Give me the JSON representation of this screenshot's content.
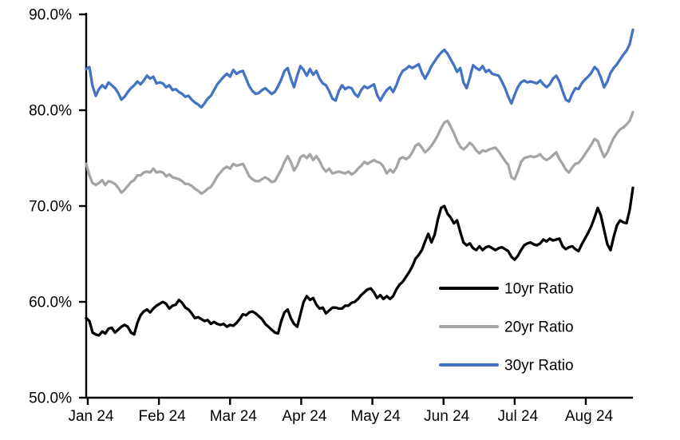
{
  "chart_data": {
    "type": "line",
    "title": "",
    "grid": false,
    "x_axis": {
      "tick_labels": [
        "Jan 24",
        "Feb 24",
        "Mar 24",
        "Apr 24",
        "May 24",
        "Jun 24",
        "Jul 24",
        "Aug 24"
      ],
      "label_format": "month-year"
    },
    "y_axis": {
      "min": 50,
      "max": 90,
      "tick_values": [
        90,
        80,
        70,
        60,
        50
      ],
      "tick_labels": [
        "90.0%",
        "80.0%",
        "70.0%",
        "60.0%",
        "50.0%"
      ]
    },
    "legend": {
      "position": "inside-lower-right",
      "entries": [
        "10yr Ratio",
        "20yr Ratio",
        "30yr Ratio"
      ]
    },
    "colors": {
      "series_10yr": "#000000",
      "series_20yr": "#A5A5A5",
      "series_30yr": "#4472C4",
      "axis": "#000000",
      "background": "#ffffff"
    },
    "series": [
      {
        "name": "10yr Ratio",
        "color": "#000000",
        "values": [
          58.3,
          58.0,
          56.8,
          56.6,
          56.5,
          56.9,
          56.7,
          57.2,
          57.3,
          56.8,
          57.1,
          57.4,
          57.6,
          57.4,
          56.8,
          56.6,
          57.8,
          58.6,
          59.0,
          59.2,
          58.9,
          59.3,
          59.6,
          59.8,
          60.0,
          59.8,
          59.3,
          59.6,
          59.7,
          60.2,
          59.9,
          59.4,
          59.2,
          58.8,
          58.3,
          58.4,
          58.2,
          58.0,
          58.1,
          57.7,
          57.9,
          57.7,
          57.6,
          57.7,
          57.4,
          57.6,
          57.5,
          57.8,
          58.2,
          58.7,
          58.6,
          58.9,
          59.0,
          58.8,
          58.5,
          58.2,
          57.7,
          57.4,
          57.1,
          56.8,
          56.7,
          58.0,
          58.9,
          59.2,
          58.3,
          57.7,
          57.4,
          58.7,
          60.0,
          60.6,
          60.2,
          60.4,
          59.7,
          59.3,
          59.4,
          58.8,
          59.1,
          59.4,
          59.4,
          59.3,
          59.3,
          59.6,
          59.6,
          59.9,
          60.0,
          60.3,
          60.7,
          61.0,
          61.3,
          61.4,
          61.0,
          60.4,
          60.7,
          60.3,
          60.6,
          60.3,
          60.6,
          61.3,
          61.8,
          62.1,
          62.6,
          63.1,
          63.7,
          64.5,
          64.9,
          65.4,
          66.3,
          67.1,
          66.2,
          67.0,
          68.6,
          69.8,
          70.0,
          69.2,
          68.8,
          68.2,
          68.5,
          67.3,
          66.2,
          65.9,
          66.1,
          65.6,
          65.4,
          65.8,
          65.4,
          65.7,
          65.8,
          65.6,
          65.4,
          65.6,
          65.7,
          65.5,
          65.3,
          64.7,
          64.4,
          64.8,
          65.4,
          65.9,
          66.1,
          66.2,
          66.0,
          65.9,
          66.1,
          66.5,
          66.3,
          66.6,
          66.4,
          66.5,
          66.6,
          65.8,
          65.5,
          65.7,
          65.8,
          65.5,
          65.3,
          66.0,
          66.6,
          67.2,
          67.9,
          68.8,
          69.8,
          69.0,
          67.5,
          66.0,
          65.4,
          66.8,
          68.0,
          68.5,
          68.3,
          68.2,
          69.6,
          71.9
        ]
      },
      {
        "name": "20yr Ratio",
        "color": "#A5A5A5",
        "values": [
          74.4,
          73.2,
          72.4,
          72.2,
          72.4,
          72.7,
          72.2,
          72.6,
          72.5,
          72.3,
          71.9,
          71.4,
          71.7,
          72.1,
          72.5,
          72.7,
          73.2,
          73.2,
          73.5,
          73.6,
          73.5,
          73.9,
          73.5,
          73.6,
          73.5,
          73.1,
          73.3,
          73.0,
          72.9,
          72.8,
          72.6,
          72.3,
          72.3,
          72.1,
          71.8,
          71.6,
          71.3,
          71.5,
          71.8,
          72.0,
          72.5,
          73.1,
          73.5,
          73.9,
          74.1,
          73.9,
          74.4,
          74.2,
          74.3,
          74.4,
          73.8,
          73.1,
          72.8,
          72.6,
          72.6,
          72.8,
          73.0,
          72.8,
          72.5,
          72.6,
          73.2,
          73.8,
          74.6,
          75.2,
          74.6,
          73.7,
          74.2,
          75.1,
          75.3,
          75.0,
          75.4,
          74.8,
          75.2,
          74.7,
          74.0,
          73.6,
          73.9,
          73.4,
          73.5,
          73.6,
          73.5,
          73.4,
          73.6,
          73.3,
          73.5,
          73.9,
          74.2,
          74.6,
          74.4,
          74.6,
          74.8,
          74.6,
          74.5,
          74.1,
          73.4,
          73.8,
          73.5,
          74.0,
          74.9,
          75.1,
          74.9,
          75.1,
          75.6,
          76.3,
          76.5,
          76.1,
          75.6,
          75.9,
          76.3,
          76.8,
          77.4,
          78.1,
          78.7,
          78.9,
          78.3,
          77.6,
          76.8,
          76.2,
          75.9,
          76.2,
          76.6,
          76.3,
          75.8,
          75.5,
          75.8,
          75.7,
          75.9,
          76.0,
          76.1,
          75.7,
          75.2,
          74.7,
          74.3,
          73.0,
          72.8,
          73.6,
          74.6,
          75.0,
          75.1,
          75.2,
          75.1,
          75.2,
          75.4,
          75.0,
          74.8,
          75.0,
          75.3,
          75.6,
          74.9,
          74.4,
          73.8,
          73.5,
          74.0,
          74.4,
          74.5,
          74.9,
          75.4,
          75.9,
          76.4,
          77.0,
          76.8,
          75.9,
          75.1,
          75.6,
          76.4,
          77.1,
          77.6,
          78.0,
          78.2,
          78.5,
          78.9,
          79.8
        ]
      },
      {
        "name": "30yr Ratio",
        "color": "#4472C4",
        "values": [
          84.3,
          84.5,
          82.5,
          81.5,
          82.2,
          82.6,
          82.3,
          82.9,
          82.6,
          82.3,
          81.8,
          81.1,
          81.4,
          81.9,
          82.3,
          82.6,
          83.0,
          82.7,
          83.1,
          83.6,
          83.3,
          83.5,
          82.8,
          82.9,
          82.8,
          82.4,
          82.6,
          82.1,
          82.2,
          81.9,
          81.7,
          81.4,
          81.5,
          81.1,
          80.8,
          80.6,
          80.3,
          80.7,
          81.2,
          81.5,
          82.1,
          82.7,
          83.1,
          83.5,
          83.8,
          83.5,
          84.2,
          83.8,
          84.0,
          84.1,
          83.3,
          82.5,
          82.0,
          81.7,
          81.8,
          82.1,
          82.3,
          82.0,
          81.7,
          81.9,
          82.5,
          83.2,
          84.1,
          84.4,
          83.3,
          82.4,
          83.6,
          84.6,
          84.2,
          83.6,
          84.3,
          83.7,
          84.1,
          83.3,
          82.8,
          82.6,
          82.0,
          81.2,
          81.0,
          82.0,
          82.6,
          82.2,
          82.4,
          82.3,
          81.7,
          81.4,
          82.1,
          82.5,
          82.3,
          82.5,
          82.7,
          81.6,
          81.0,
          81.6,
          82.1,
          82.4,
          81.9,
          82.6,
          83.5,
          84.1,
          84.3,
          84.6,
          84.4,
          84.6,
          84.8,
          83.9,
          83.3,
          83.9,
          84.6,
          85.1,
          85.6,
          86.0,
          86.3,
          85.9,
          85.3,
          84.7,
          84.0,
          84.4,
          82.9,
          82.3,
          83.4,
          84.7,
          84.4,
          84.2,
          84.6,
          84.0,
          84.2,
          83.8,
          83.7,
          83.6,
          83.0,
          82.3,
          81.4,
          80.7,
          81.6,
          82.4,
          82.9,
          83.1,
          82.9,
          83.0,
          82.9,
          82.8,
          83.1,
          82.7,
          82.4,
          82.7,
          83.3,
          83.6,
          83.0,
          82.0,
          81.1,
          80.9,
          81.7,
          82.3,
          82.2,
          82.8,
          83.2,
          83.5,
          83.9,
          84.5,
          84.2,
          83.4,
          82.4,
          83.0,
          83.9,
          84.4,
          84.8,
          85.3,
          85.8,
          86.2,
          86.9,
          88.4
        ]
      }
    ]
  }
}
